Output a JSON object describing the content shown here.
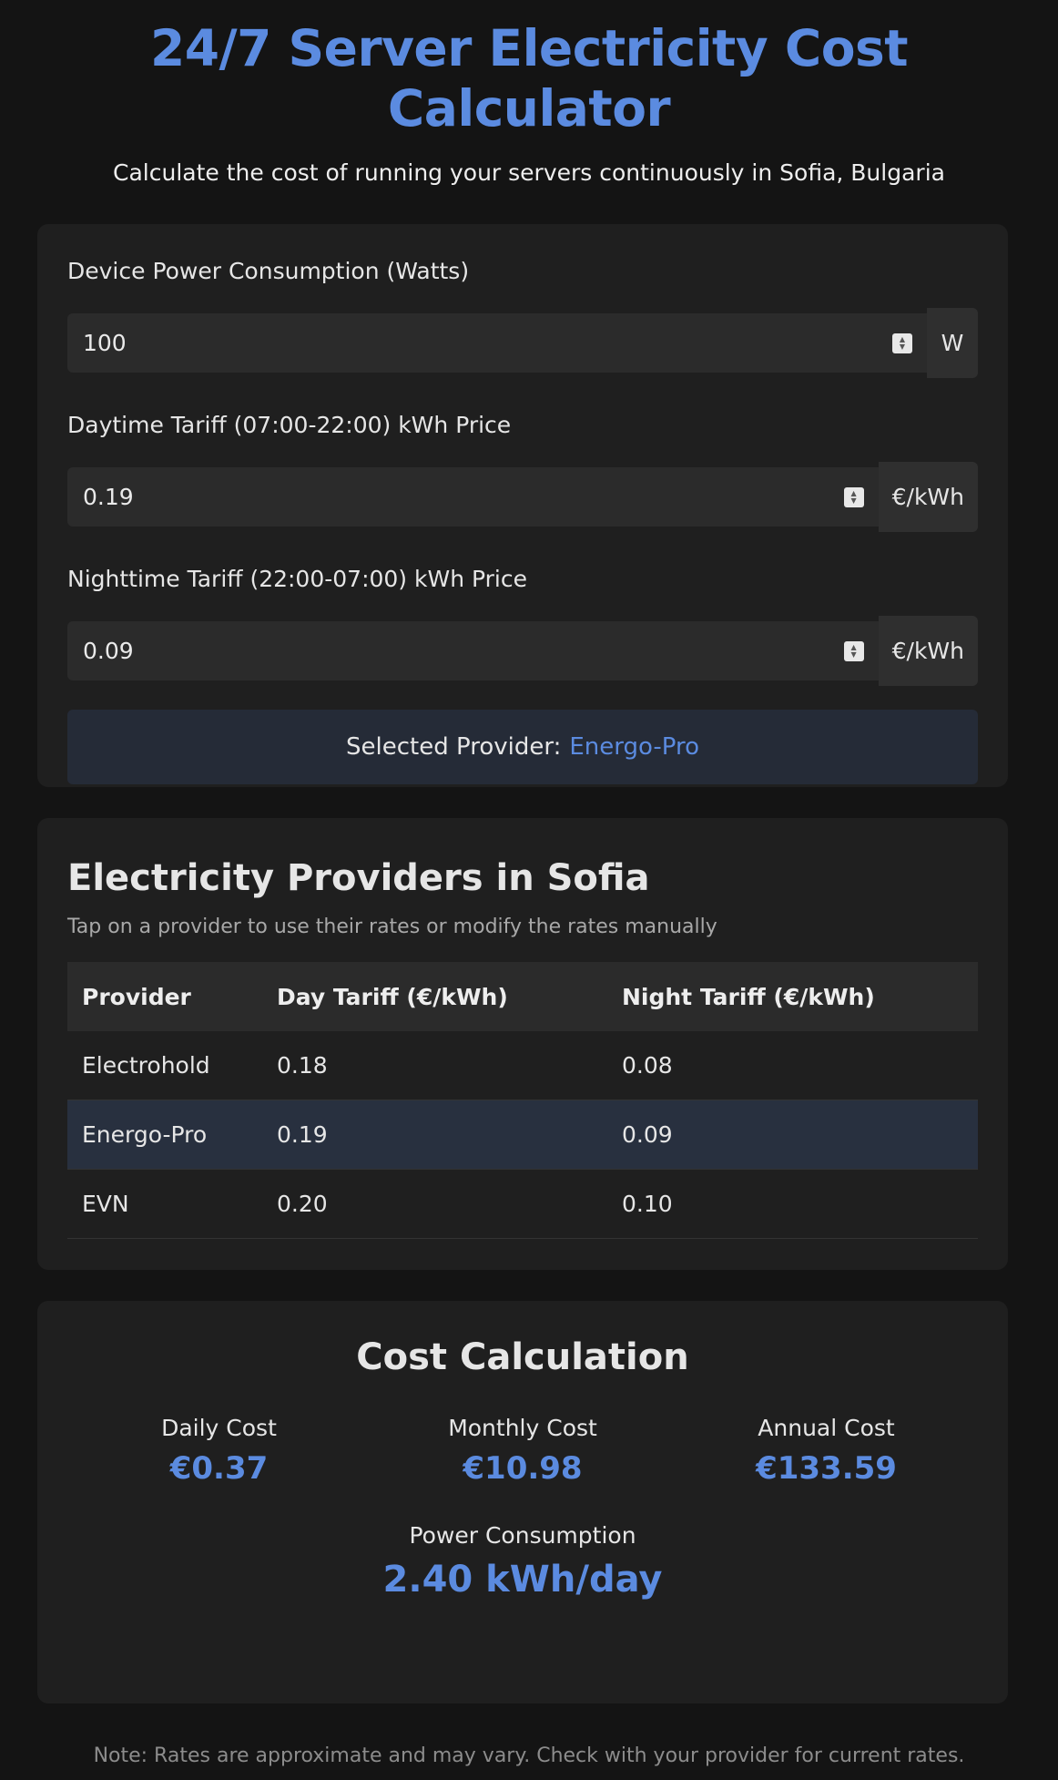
{
  "header": {
    "title": "24/7 Server Electricity Cost Calculator",
    "subtitle": "Calculate the cost of running your servers continuously in Sofia, Bulgaria"
  },
  "inputs": {
    "power": {
      "label": "Device Power Consumption (Watts)",
      "value": "100",
      "unit": "W"
    },
    "day_tariff": {
      "label": "Daytime Tariff (07:00-22:00) kWh Price",
      "value": "0.19",
      "unit": "€/kWh"
    },
    "night_tariff": {
      "label": "Nighttime Tariff (22:00-07:00) kWh Price",
      "value": "0.09",
      "unit": "€/kWh"
    },
    "selected_provider": {
      "label": "Selected Provider:",
      "name": "Energo-Pro"
    }
  },
  "providers": {
    "title": "Electricity Providers in Sofia",
    "hint": "Tap on a provider to use their rates or modify the rates manually",
    "columns": [
      "Provider",
      "Day Tariff (€/kWh)",
      "Night Tariff (€/kWh)"
    ],
    "rows": [
      {
        "name": "Electrohold",
        "day": "0.18",
        "night": "0.08"
      },
      {
        "name": "Energo-Pro",
        "day": "0.19",
        "night": "0.09"
      },
      {
        "name": "EVN",
        "day": "0.20",
        "night": "0.10"
      }
    ]
  },
  "costs": {
    "title": "Cost Calculation",
    "daily": {
      "label": "Daily Cost",
      "value": "€0.37"
    },
    "monthly": {
      "label": "Monthly Cost",
      "value": "€10.98"
    },
    "annual": {
      "label": "Annual Cost",
      "value": "€133.59"
    },
    "power": {
      "label": "Power Consumption",
      "value": "2.40 kWh/day"
    }
  },
  "footer": {
    "note": "Note: Rates are approximate and may vary. Check with your provider for current rates."
  },
  "colors": {
    "accent": "#5b8be0",
    "background": "#141414",
    "card": "#1f1f1f",
    "selected_row": "#28303f"
  }
}
